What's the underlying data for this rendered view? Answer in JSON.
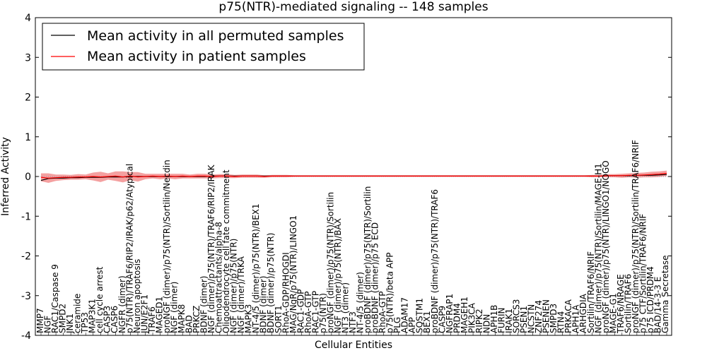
{
  "chart_data": {
    "type": "line",
    "title": "p75(NTR)-mediated signaling -- 148 samples",
    "xlabel": "Cellular Entities",
    "ylabel": "Inferred Activity",
    "ylim": [
      -4,
      4
    ],
    "yticks": [
      -4,
      -3,
      -2,
      -1,
      0,
      1,
      2,
      3,
      4
    ],
    "grid": false,
    "legend_position": "top-left",
    "series": [
      {
        "name": "Mean activity in all permuted samples",
        "color": "#000000",
        "values": [
          -0.1,
          -0.05,
          -0.04,
          -0.04,
          -0.03,
          -0.03,
          -0.02,
          -0.02,
          -0.02,
          -0.01,
          -0.01,
          -0.01,
          0.0,
          0.0,
          0.0,
          0.0,
          0.0,
          0.0,
          0.0,
          0.0,
          0.0,
          0.0,
          0.0,
          0.01,
          0.01,
          0.01,
          0.01,
          0.01,
          0.01,
          0.01,
          0.01,
          0.01,
          0.01,
          0.01,
          0.01,
          0.01,
          0.01,
          0.01,
          0.01,
          0.01,
          0.01,
          0.01,
          0.01,
          0.01,
          0.01,
          0.01,
          0.01,
          0.01,
          0.01,
          0.01,
          0.01,
          0.01,
          0.01,
          0.01,
          0.01,
          0.01,
          0.01,
          0.01,
          0.01,
          0.01,
          0.01,
          0.01,
          0.01,
          0.01,
          0.01,
          0.01,
          0.01,
          0.01,
          0.01,
          0.01,
          0.01,
          0.01,
          0.01,
          0.01,
          0.01,
          0.01,
          0.02,
          0.02,
          0.02,
          0.02,
          0.03,
          0.03,
          0.03,
          0.04,
          0.05
        ]
      },
      {
        "name": "Mean activity in patient samples",
        "color": "#ff0000",
        "band_color": "#f08080",
        "values": [
          -0.02,
          -0.04,
          -0.03,
          -0.02,
          -0.02,
          -0.01,
          -0.01,
          0.0,
          -0.01,
          0.0,
          0.01,
          -0.01,
          0.01,
          -0.01,
          0.0,
          0.01,
          0.0,
          0.01,
          0.0,
          0.01,
          0.0,
          0.01,
          0.01,
          0.0,
          0.01,
          0.01,
          0.0,
          0.01,
          0.01,
          0.01,
          0.0,
          0.01,
          0.01,
          0.01,
          0.01,
          0.01,
          0.01,
          0.01,
          0.01,
          0.01,
          0.01,
          0.01,
          0.01,
          0.01,
          0.01,
          0.01,
          0.01,
          0.01,
          0.01,
          0.01,
          0.01,
          0.01,
          0.01,
          0.01,
          0.01,
          0.01,
          0.01,
          0.01,
          0.01,
          0.01,
          0.01,
          0.01,
          0.01,
          0.01,
          0.01,
          0.01,
          0.01,
          0.01,
          0.01,
          0.01,
          0.01,
          0.01,
          0.01,
          0.01,
          0.01,
          0.01,
          0.02,
          0.02,
          0.02,
          0.03,
          0.03,
          0.04,
          0.05,
          0.06,
          0.08
        ],
        "band": [
          0.1,
          0.12,
          0.08,
          0.07,
          0.06,
          0.07,
          0.06,
          0.1,
          0.13,
          0.08,
          0.12,
          0.14,
          0.1,
          0.12,
          0.07,
          0.06,
          0.07,
          0.06,
          0.07,
          0.06,
          0.05,
          0.06,
          0.06,
          0.05,
          0.05,
          0.05,
          0.04,
          0.04,
          0.04,
          0.04,
          0.03,
          0.03,
          0.03,
          0.03,
          0.02,
          0.02,
          0.02,
          0.02,
          0.02,
          0.02,
          0.02,
          0.02,
          0.02,
          0.02,
          0.02,
          0.02,
          0.02,
          0.02,
          0.02,
          0.02,
          0.02,
          0.02,
          0.02,
          0.02,
          0.02,
          0.02,
          0.02,
          0.02,
          0.02,
          0.02,
          0.02,
          0.02,
          0.02,
          0.02,
          0.02,
          0.02,
          0.02,
          0.02,
          0.02,
          0.02,
          0.02,
          0.02,
          0.02,
          0.02,
          0.03,
          0.03,
          0.04,
          0.04,
          0.05,
          0.05,
          0.06,
          0.06,
          0.07,
          0.07,
          0.07
        ]
      }
    ],
    "categories": [
      "MMP7",
      "NGF",
      "RAC1/Caspase 9",
      "SMPD2",
      "JNK1",
      "ceramide",
      "TP53",
      "MAP3K1",
      "cell cycle arrest",
      "CASP3",
      "CASP6",
      "NGFR (dimer)",
      "p75(NTR)/TRAF6/RIP2/IRAK/p62/Atypical",
      "Neuron apoptosis",
      "JUN/E2F1",
      "TRAF6",
      "MAGED1",
      "proNGF (dimer)/p75(NTR)/Sortilin/Necdin",
      "NGF (dimer)",
      "MAPK8",
      "BAD",
      "PRKCZ",
      "BDNF (dimer)",
      "NGF (dimer)/p75(NTR)/TRAF6/RIP2/IRAK",
      "Chemoattractants/alpha-8",
      "Oligodendrocyte cell fate commitment",
      "NGF (dimer)/p75(NTR)",
      "NGF (dimer)/TRKA",
      "MAPK3",
      "NT-4/5 (dimer)/p75(NTR)/BEX1",
      "BDNF (dimer)",
      "BDNF (dimer)/p75(NTR)",
      "SORT1",
      "RhoA-GDP/RHOGDI",
      "MAG/NgR/p75(NTR)/LINGO1",
      "RAC1-GDP",
      "RhoA-GTP",
      "RAC1-GTP",
      "p75(NTR)",
      "proNGF (dimer)/p75(NTR)/Sortilin",
      "NGF (dimer)/p75(NTR)/BAX",
      "NT3 (dimer)",
      "NTF3",
      "NT-4/5 (dimer)",
      "proBDNF (dimer)/p75(NTR)/Sortilin",
      "proBDNF (dimer)/p75 ECD",
      "RhoA-GTP",
      "p75(NTR)/beta APP",
      "PLG",
      "ADAM17",
      "APP",
      "SQSTM1",
      "BEX1",
      "proBDNF (dimer)/p75(NTR)/TRAF6",
      "CASP9",
      "NGFRAP1",
      "PRDM4",
      "MAGEH1",
      "PIK3CA",
      "RIPK2",
      "NDN",
      "APH1B",
      "FURIN",
      "IRAK1",
      "SORCS3",
      "PSEN1",
      "NCSTN",
      "ZNF274",
      "PSENEN",
      "SMPD3",
      "RTN4",
      "PRKACA",
      "APH1A",
      "ARHGDIA",
      "Sortilin/TRAF6/NRIF",
      "NGF (dimer)/p75(NTR)/Sortilin/MAGE-H1",
      "proNGF (dimer)/p75(NTR)/LINGO1/NOGO",
      "MAGE-G1",
      "TRAF6/NRAGE",
      "Sortilin/TRAF6",
      "proNGF (dimer)/p75(NTR)/Sortilin/TRAF6/NRIF",
      "p75 CTF/Sortilin/TRAF6/NRIF",
      "p75 ICD/PRDM4",
      "BAD/14-3-3 E",
      "Gamma Secretase"
    ]
  }
}
